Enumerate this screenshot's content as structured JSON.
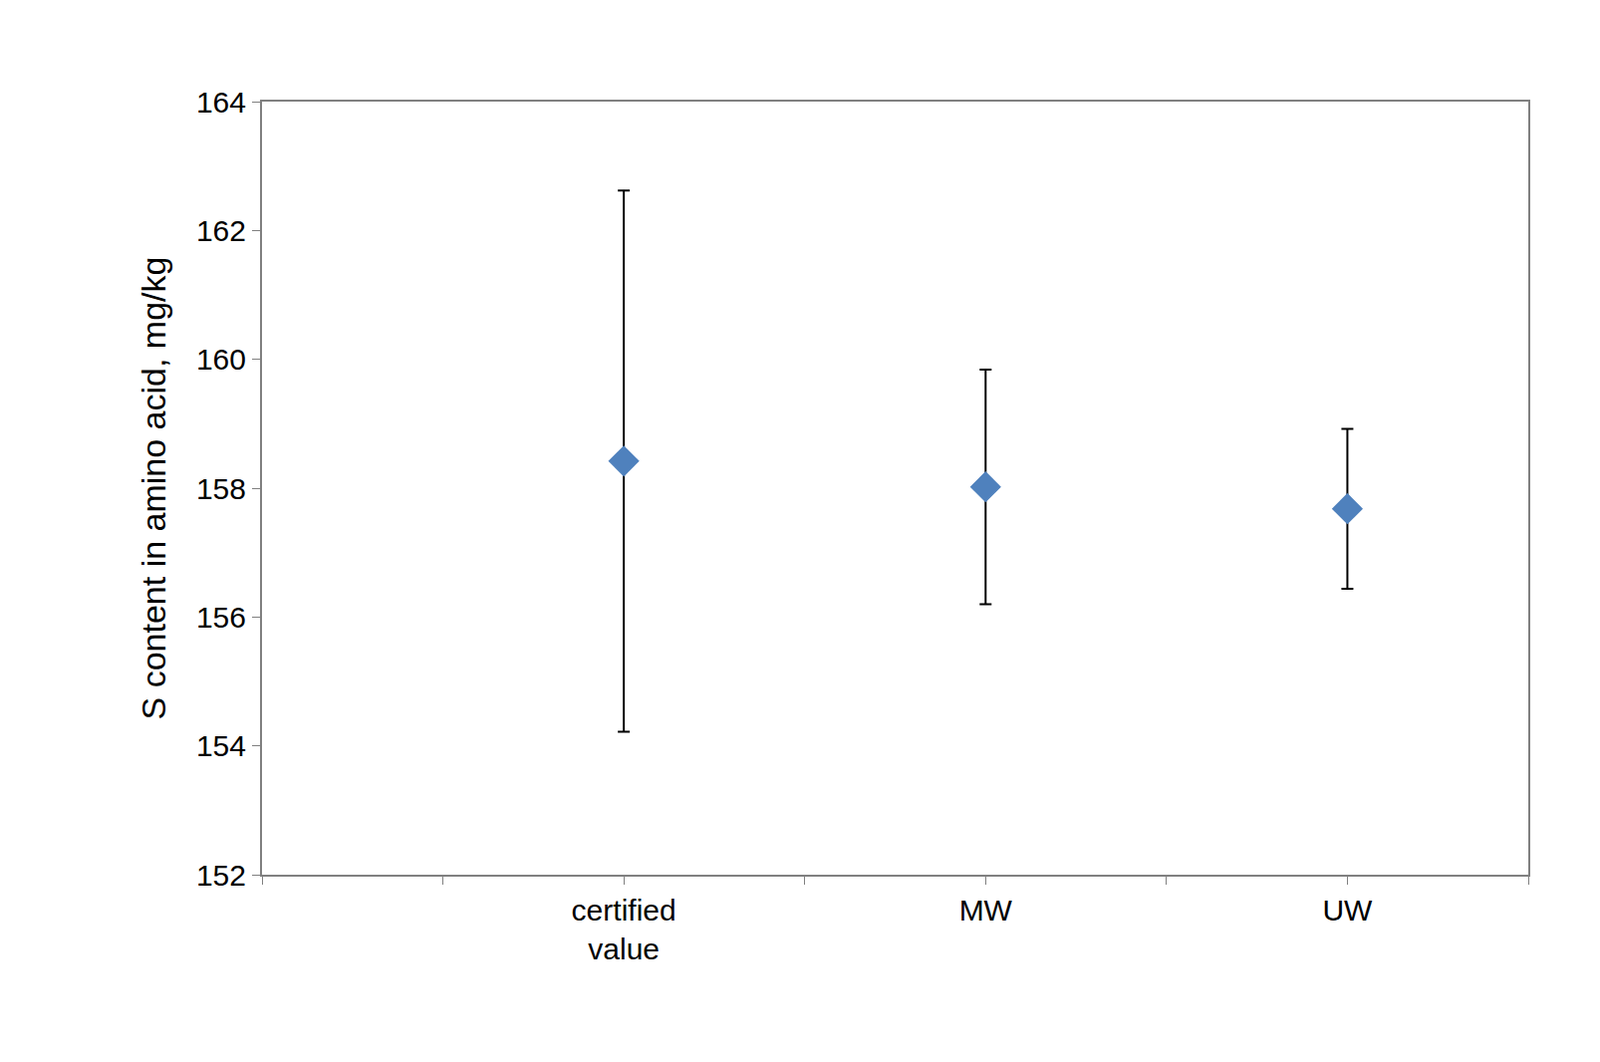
{
  "chart_data": {
    "type": "scatter",
    "categories": [
      "certified value",
      "MW",
      "UW"
    ],
    "values": [
      158.42,
      158.02,
      157.68
    ],
    "errors": [
      4.2,
      1.82,
      1.24
    ],
    "ylabel": "S content in amino acid, mg/kg",
    "ylim": [
      152,
      164
    ],
    "yticks": [
      152,
      154,
      156,
      158,
      160,
      162,
      164
    ],
    "color": "#4f81bd",
    "marker": "diamond",
    "grid": false
  }
}
